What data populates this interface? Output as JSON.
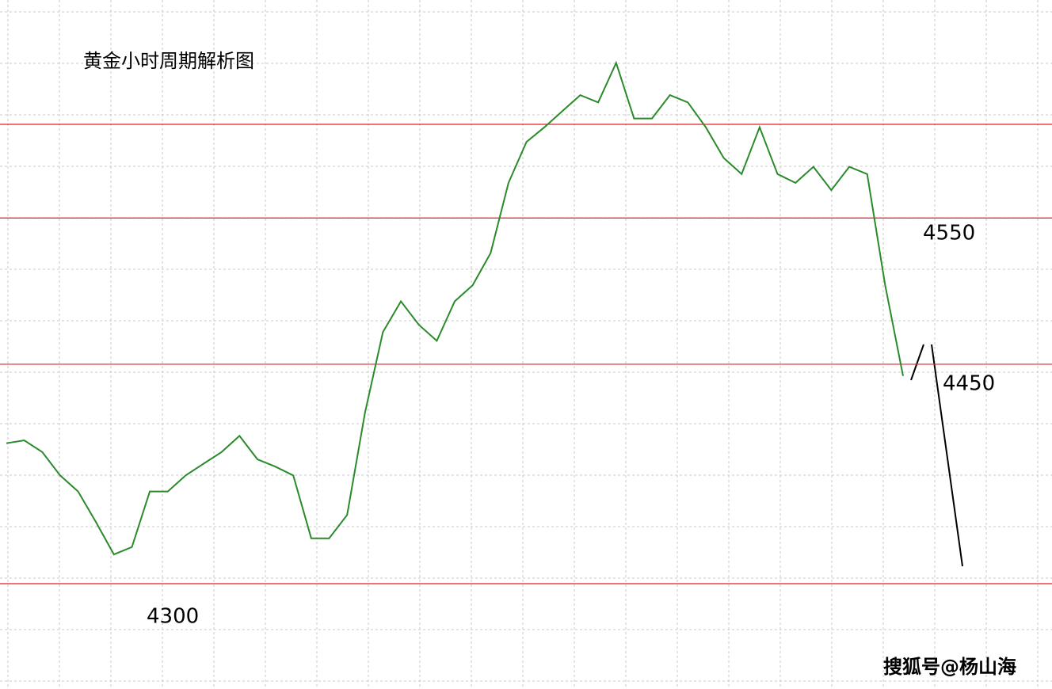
{
  "chart_data": {
    "type": "line",
    "title": "黄金小时周期解析图",
    "watermark": "搜狐号@杨山海",
    "series": [
      {
        "name": null,
        "color": "#2b8a2b",
        "values": [
          4396,
          4398,
          4390,
          4374,
          4363,
          4342,
          4320,
          4325,
          4363,
          4363,
          4374,
          4382,
          4390,
          4401,
          4385,
          4380,
          4374,
          4331,
          4331,
          4347,
          4417,
          4472,
          4493,
          4477,
          4466,
          4493,
          4504,
          4526,
          4574,
          4602,
          4612,
          4623,
          4634,
          4629,
          4656,
          4618,
          4618,
          4634,
          4629,
          4612,
          4591,
          4580,
          4612,
          4580,
          4574,
          4585,
          4569,
          4585,
          4580,
          4504,
          4442
        ]
      }
    ],
    "levels": [
      4614,
      4550,
      4450,
      4300
    ],
    "level_labels": [
      null,
      "4550",
      "4450",
      "4300"
    ],
    "level_color": "#e02020",
    "ylim": [
      4228,
      4699
    ],
    "grid": true
  }
}
